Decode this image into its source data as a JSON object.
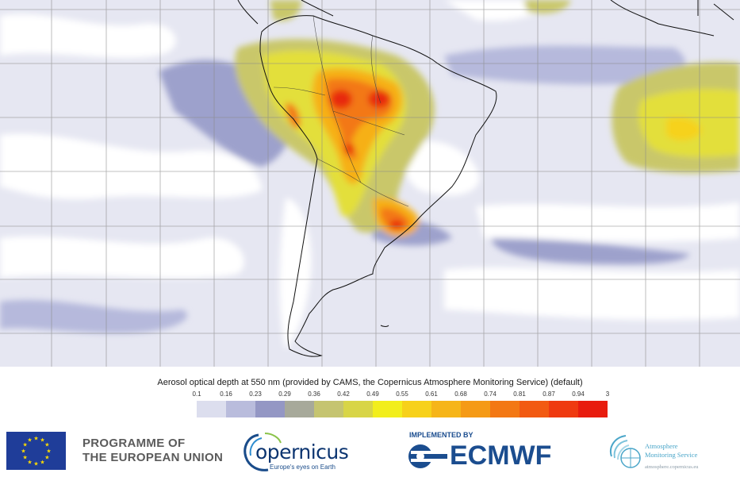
{
  "legend": {
    "title": "Aerosol optical depth at 550 nm (provided by CAMS, the Copernicus Atmosphere Monitoring Service) (default)",
    "ticks": [
      "0.1",
      "0.16",
      "0.23",
      "0.29",
      "0.36",
      "0.42",
      "0.49",
      "0.55",
      "0.61",
      "0.68",
      "0.74",
      "0.81",
      "0.87",
      "0.94",
      "3"
    ],
    "colors": [
      "#dcdeee",
      "#b9bcdc",
      "#9497c4",
      "#a7a99a",
      "#c5c470",
      "#d8d547",
      "#f2ee1c",
      "#f7d11a",
      "#f6b519",
      "#f59a16",
      "#f37814",
      "#f25a12",
      "#ef3a10",
      "#e81c0e"
    ]
  },
  "footer": {
    "eu_text_line1": "PROGRAMME OF",
    "eu_text_line2": "THE EUROPEAN UNION",
    "copernicus_word": "opernicus",
    "copernicus_tagline": "Europe's eyes on Earth",
    "implemented_by": "IMPLEMENTED BY",
    "ecmwf": "ECMWF",
    "ams_line1": "Atmosphere",
    "ams_line2": "Monitoring Service",
    "ams_url": "atmosphere.copernicus.eu"
  }
}
